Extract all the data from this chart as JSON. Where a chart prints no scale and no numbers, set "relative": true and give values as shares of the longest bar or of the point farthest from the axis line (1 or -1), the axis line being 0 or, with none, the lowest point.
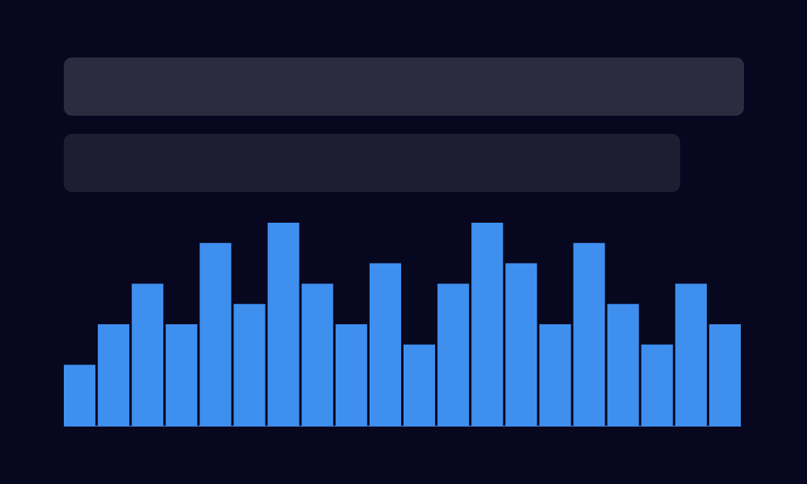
{
  "chart_data": {
    "type": "bar",
    "relative": true,
    "categories": [
      null,
      null,
      null,
      null,
      null,
      null,
      null,
      null,
      null,
      null,
      null,
      null,
      null,
      null,
      null,
      null,
      null,
      null,
      null,
      null
    ],
    "series": [
      {
        "color": "#3f8fef",
        "values": [
          0.3,
          0.5,
          0.7,
          0.5,
          0.9,
          0.6,
          1,
          0.7,
          0.5,
          0.8,
          0.4,
          0.7,
          1,
          0.8,
          0.5,
          0.9,
          0.6,
          0.4,
          0.7,
          0.5
        ]
      }
    ]
  }
}
